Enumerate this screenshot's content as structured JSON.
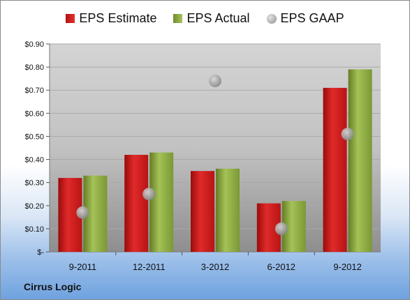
{
  "company": "Cirrus Logic",
  "chart_data": {
    "type": "bar",
    "categories": [
      "9-2011",
      "12-2011",
      "3-2012",
      "6-2012",
      "9-2012"
    ],
    "series": [
      {
        "name": "EPS Estimate",
        "values": [
          0.32,
          0.42,
          0.35,
          0.21,
          0.71
        ],
        "color": "#cc1f1f"
      },
      {
        "name": "EPS Actual",
        "values": [
          0.33,
          0.43,
          0.36,
          0.22,
          0.79
        ],
        "color": "#8fae44"
      },
      {
        "name": "EPS GAAP",
        "values": [
          0.17,
          0.25,
          0.74,
          0.1,
          0.51
        ],
        "color": "#a0a0a0",
        "marker": "circle"
      }
    ],
    "yticks": [
      "$-",
      "$0.10",
      "$0.20",
      "$0.30",
      "$0.40",
      "$0.50",
      "$0.60",
      "$0.70",
      "$0.80",
      "$0.90"
    ],
    "ylim": [
      0,
      0.9
    ],
    "legend": "top",
    "grid": true
  }
}
